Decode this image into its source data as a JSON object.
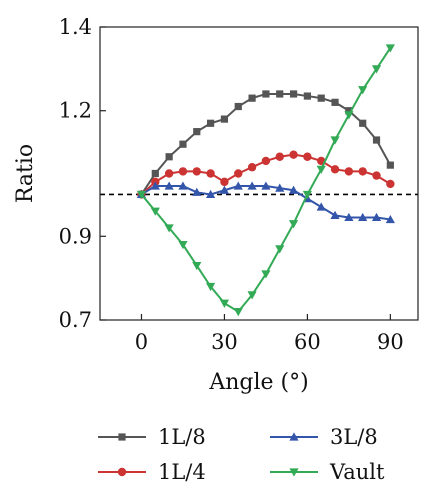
{
  "chart_data": {
    "type": "line",
    "xlabel": "Angle (°)",
    "ylabel": "Ratio",
    "xlim": [
      -15,
      100
    ],
    "ylim": [
      0.7,
      1.4
    ],
    "xticks": [
      0,
      30,
      60,
      90
    ],
    "yticks": [
      0.7,
      0.9,
      1.2,
      1.4
    ],
    "ytick_labels": [
      "0.7",
      "0.9",
      "1.2",
      "1.4"
    ],
    "xtick_labels": [
      "0",
      "30",
      "60",
      "90"
    ],
    "reference_line": {
      "y": 1.0,
      "style": "dashed",
      "color": "#000000"
    },
    "grid": false,
    "legend_position": "bottom",
    "series": [
      {
        "name": "1L/8",
        "color": "#555555",
        "marker": "square",
        "x": [
          0,
          5,
          10,
          15,
          20,
          25,
          30,
          35,
          40,
          45,
          50,
          55,
          60,
          65,
          70,
          75,
          80,
          85,
          90
        ],
        "y": [
          1.0,
          1.05,
          1.09,
          1.12,
          1.15,
          1.17,
          1.18,
          1.21,
          1.23,
          1.24,
          1.24,
          1.24,
          1.235,
          1.23,
          1.22,
          1.2,
          1.17,
          1.13,
          1.07
        ]
      },
      {
        "name": "1L/4",
        "color": "#cc3333",
        "marker": "circle",
        "x": [
          0,
          5,
          10,
          15,
          20,
          25,
          30,
          35,
          40,
          45,
          50,
          55,
          60,
          65,
          70,
          75,
          80,
          85,
          90
        ],
        "y": [
          1.0,
          1.03,
          1.05,
          1.055,
          1.055,
          1.05,
          1.03,
          1.05,
          1.065,
          1.08,
          1.09,
          1.095,
          1.09,
          1.08,
          1.06,
          1.055,
          1.055,
          1.045,
          1.025
        ]
      },
      {
        "name": "3L/8",
        "color": "#3355aa",
        "marker": "triangle-up",
        "x": [
          0,
          5,
          10,
          15,
          20,
          25,
          30,
          35,
          40,
          45,
          50,
          55,
          60,
          65,
          70,
          75,
          80,
          85,
          90
        ],
        "y": [
          1.0,
          1.02,
          1.02,
          1.02,
          1.005,
          1.0,
          1.01,
          1.02,
          1.02,
          1.02,
          1.015,
          1.01,
          0.99,
          0.97,
          0.95,
          0.945,
          0.945,
          0.945,
          0.94
        ]
      },
      {
        "name": "Vault",
        "color": "#33aa55",
        "marker": "triangle-down",
        "x": [
          0,
          5,
          10,
          15,
          20,
          25,
          30,
          35,
          40,
          45,
          50,
          55,
          60,
          65,
          70,
          75,
          80,
          85,
          90
        ],
        "y": [
          1.0,
          0.96,
          0.92,
          0.88,
          0.83,
          0.78,
          0.74,
          0.72,
          0.76,
          0.81,
          0.87,
          0.93,
          1.0,
          1.06,
          1.13,
          1.19,
          1.25,
          1.3,
          1.35
        ]
      }
    ]
  }
}
